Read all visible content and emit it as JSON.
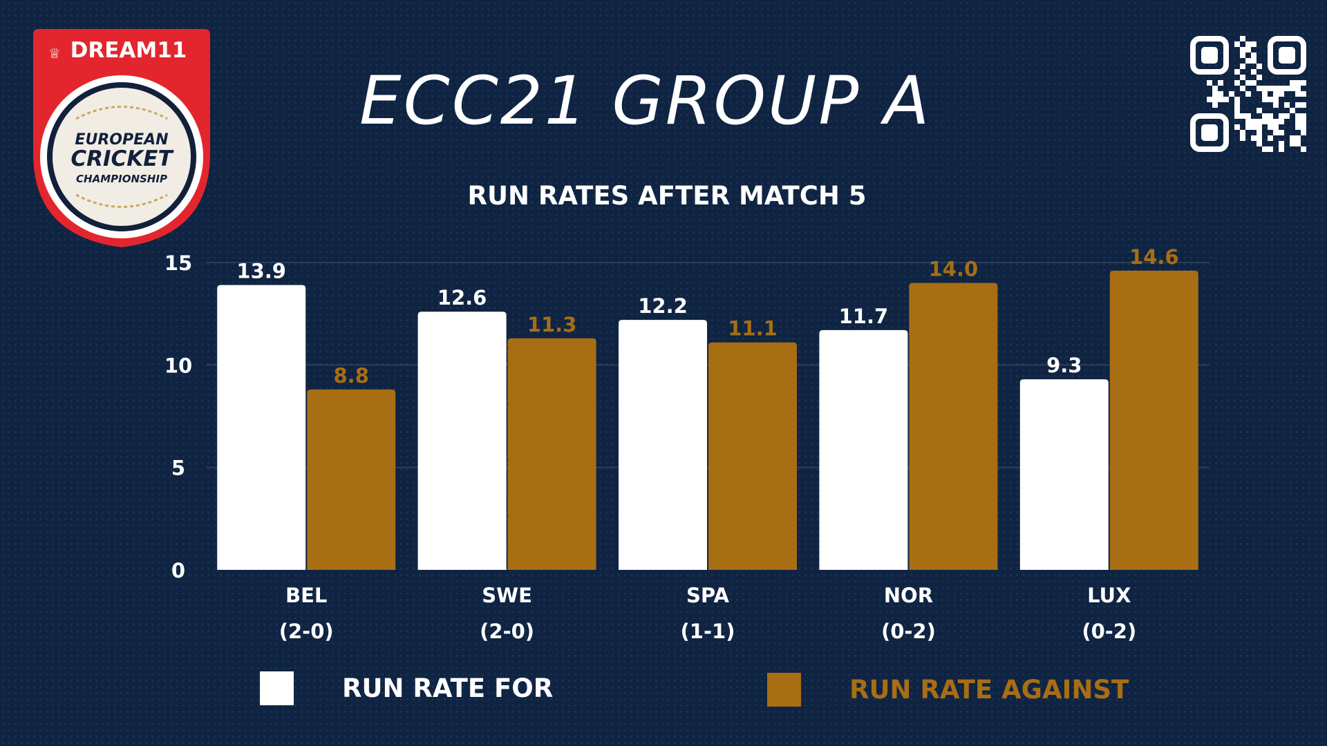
{
  "logo": {
    "brand": "DREAM11",
    "line1": "EUROPEAN",
    "line2": "CRICKET",
    "line3": "CHAMPIONSHIP"
  },
  "qr_icon": "qr-code-icon",
  "colors": {
    "background": "#0f2442",
    "run_rate_for": "#ffffff",
    "run_rate_against": "#a86e14",
    "logo_red": "#e3262e",
    "axis_text": "#ffffff"
  },
  "chart_data": {
    "type": "bar",
    "title": "ECC21 GROUP A",
    "subtitle": "RUN RATES AFTER MATCH 5",
    "categories": [
      "BEL",
      "SWE",
      "SPA",
      "NOR",
      "LUX"
    ],
    "category_records": [
      "(2-0)",
      "(2-0)",
      "(1-1)",
      "(0-2)",
      "(0-2)"
    ],
    "series": [
      {
        "name": "RUN RATE FOR",
        "values": [
          13.9,
          12.6,
          12.2,
          11.7,
          9.3
        ]
      },
      {
        "name": "RUN RATE AGAINST",
        "values": [
          8.8,
          11.3,
          11.1,
          14.0,
          14.6
        ]
      }
    ],
    "data_labels": [
      [
        "13.9",
        "12.6",
        "12.2",
        "11.7",
        "9.3"
      ],
      [
        "8.8",
        "11.3",
        "11.1",
        "14.0",
        "14.6"
      ]
    ],
    "yticks": [
      "0",
      "5",
      "10",
      "15"
    ],
    "ylim": [
      0,
      15
    ],
    "grid": true,
    "legend_position": "bottom"
  }
}
